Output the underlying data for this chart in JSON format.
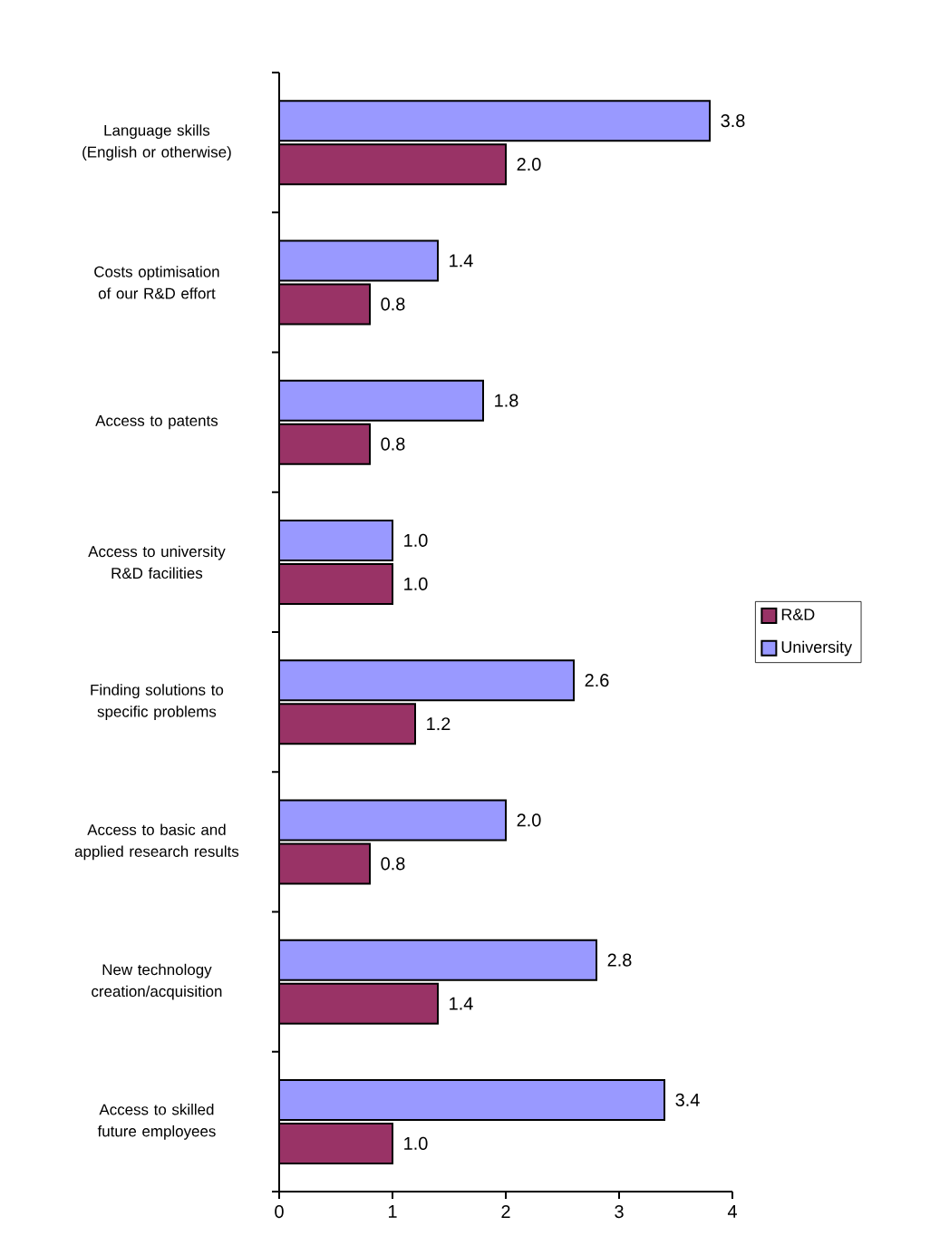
{
  "chart_data": {
    "type": "bar",
    "orientation": "horizontal",
    "categories": [
      "Language skills (English or otherwise)",
      "Costs optimisation of our R&D effort",
      "Access to patents",
      "Access to university R&D facilities",
      "Finding solutions to specific problems",
      "Access to basic and applied research results",
      "New technology creation/acquisition",
      "Access to skilled future employees"
    ],
    "series": [
      {
        "name": "R&D",
        "color": "#993366",
        "values": [
          2.0,
          0.8,
          0.8,
          1.0,
          1.2,
          0.8,
          1.4,
          1.0
        ],
        "value_labels": [
          "2.0",
          "0.8",
          "0.8",
          "1.0",
          "1.2",
          "0.8",
          "1.4",
          "1.0"
        ]
      },
      {
        "name": "University",
        "color": "#9999ff",
        "values": [
          3.8,
          1.4,
          1.8,
          1.0,
          2.6,
          2.0,
          2.8,
          3.4
        ],
        "value_labels": [
          "3.8",
          "1.4",
          "1.8",
          "1.0",
          "2.6",
          "2.0",
          "2.8",
          "3.4"
        ]
      }
    ],
    "xlim": [
      0,
      4
    ],
    "xticks": [
      0,
      1,
      2,
      3,
      4
    ],
    "grid": false,
    "legend": "right"
  }
}
